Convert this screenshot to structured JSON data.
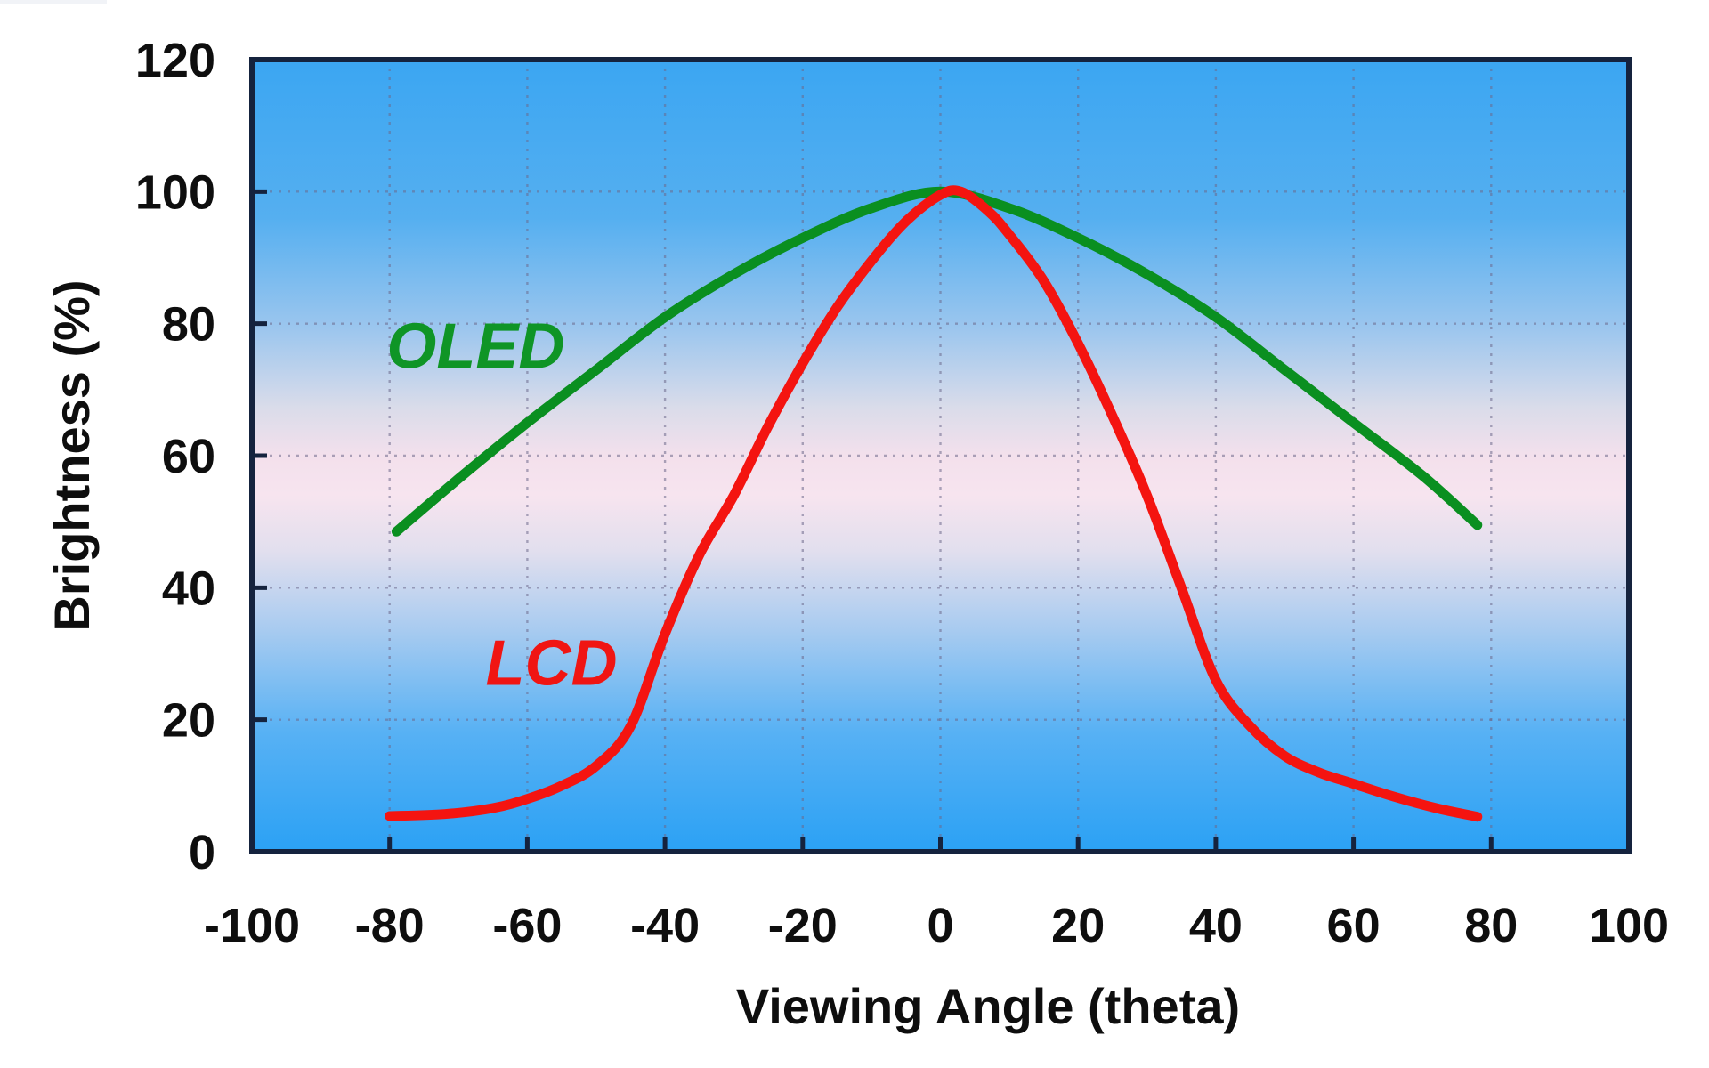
{
  "chart_data": {
    "type": "line",
    "title": "",
    "xlabel": "Viewing Angle (theta)",
    "ylabel": "Brightness (%)",
    "xlim": [
      -100,
      100
    ],
    "ylim": [
      0,
      120
    ],
    "x_ticks": [
      -100,
      -80,
      -60,
      -40,
      -20,
      0,
      20,
      40,
      60,
      80,
      100
    ],
    "y_ticks": [
      0,
      20,
      40,
      60,
      80,
      100,
      120
    ],
    "x_tick_labels": [
      "-100",
      "-80",
      "-60",
      "-40",
      "-20",
      "0",
      "20",
      "40",
      "60",
      "80",
      "100"
    ],
    "y_tick_labels": [
      "0",
      "20",
      "40",
      "60",
      "80",
      "100",
      "120"
    ],
    "grid": "dotted",
    "grid_color": "rgba(108,104,138,0.55)",
    "frame_color": "#15233e",
    "legend_position": "inline-annotations",
    "plot_background_gradient": {
      "direction": "top-to-bottom",
      "stops": [
        {
          "offset": 0.0,
          "color": "#3ba6f2"
        },
        {
          "offset": 0.2,
          "color": "#55aff0"
        },
        {
          "offset": 0.34,
          "color": "#9cc6ee"
        },
        {
          "offset": 0.44,
          "color": "#dadcea"
        },
        {
          "offset": 0.5,
          "color": "#f3e0ec"
        },
        {
          "offset": 0.55,
          "color": "#f7e4ef"
        },
        {
          "offset": 0.62,
          "color": "#e2dfee"
        },
        {
          "offset": 0.72,
          "color": "#a8cbf0"
        },
        {
          "offset": 0.85,
          "color": "#57b1f4"
        },
        {
          "offset": 1.0,
          "color": "#2ba1f4"
        }
      ]
    },
    "series": [
      {
        "name": "OLED",
        "color": "#0a8f20",
        "label_color": "#0f9526",
        "annotation": {
          "text": "OLED",
          "x": -67.5,
          "y": 76.5
        },
        "points": [
          [
            -79,
            48.5
          ],
          [
            -70,
            56.5
          ],
          [
            -60,
            65
          ],
          [
            -50,
            73
          ],
          [
            -40,
            81
          ],
          [
            -30,
            87.5
          ],
          [
            -20,
            93
          ],
          [
            -10,
            97.5
          ],
          [
            0,
            100
          ],
          [
            10,
            97.5
          ],
          [
            20,
            93
          ],
          [
            30,
            87.5
          ],
          [
            40,
            81
          ],
          [
            50,
            73
          ],
          [
            60,
            65
          ],
          [
            70,
            57
          ],
          [
            78,
            49.5
          ]
        ]
      },
      {
        "name": "LCD",
        "color": "#f41410",
        "label_color": "#f01513",
        "annotation": {
          "text": "LCD",
          "x": -56.5,
          "y": 28.5
        },
        "points": [
          [
            -80,
            5.4
          ],
          [
            -72,
            5.7
          ],
          [
            -65,
            6.6
          ],
          [
            -60,
            8
          ],
          [
            -55,
            10
          ],
          [
            -50,
            13
          ],
          [
            -45,
            19
          ],
          [
            -40,
            33
          ],
          [
            -35,
            45
          ],
          [
            -30,
            54
          ],
          [
            -25,
            64.5
          ],
          [
            -20,
            74
          ],
          [
            -15,
            82.5
          ],
          [
            -10,
            89.5
          ],
          [
            -5,
            95.5
          ],
          [
            0,
            99.5
          ],
          [
            3,
            100
          ],
          [
            7,
            97
          ],
          [
            10,
            93.5
          ],
          [
            15,
            86.5
          ],
          [
            20,
            77
          ],
          [
            25,
            66
          ],
          [
            30,
            54
          ],
          [
            35,
            40
          ],
          [
            40,
            26
          ],
          [
            45,
            19
          ],
          [
            50,
            14.5
          ],
          [
            55,
            12
          ],
          [
            60,
            10.3
          ],
          [
            66,
            8.3
          ],
          [
            72,
            6.6
          ],
          [
            78,
            5.3
          ]
        ]
      }
    ]
  }
}
